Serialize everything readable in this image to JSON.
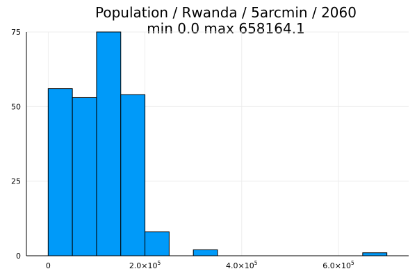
{
  "chart_data": {
    "type": "bar",
    "title_line1": "Population / Rwanda / 5arcmin / 2060",
    "title_line2": "min 0.0  max 658164.1",
    "xlabel": "",
    "ylabel": "",
    "bin_width": 50000,
    "bins": [
      {
        "x0": 0,
        "x1": 50000,
        "count": 56
      },
      {
        "x0": 50000,
        "x1": 100000,
        "count": 53
      },
      {
        "x0": 100000,
        "x1": 150000,
        "count": 75
      },
      {
        "x0": 150000,
        "x1": 200000,
        "count": 54
      },
      {
        "x0": 200000,
        "x1": 250000,
        "count": 8
      },
      {
        "x0": 250000,
        "x1": 300000,
        "count": 0
      },
      {
        "x0": 300000,
        "x1": 350000,
        "count": 2
      },
      {
        "x0": 350000,
        "x1": 400000,
        "count": 0
      },
      {
        "x0": 400000,
        "x1": 450000,
        "count": 0
      },
      {
        "x0": 450000,
        "x1": 500000,
        "count": 0
      },
      {
        "x0": 500000,
        "x1": 550000,
        "count": 0
      },
      {
        "x0": 550000,
        "x1": 600000,
        "count": 0
      },
      {
        "x0": 600000,
        "x1": 650000,
        "count": 0
      },
      {
        "x0": 650000,
        "x1": 700000,
        "count": 1
      }
    ],
    "xlim": [
      -45000,
      745000
    ],
    "ylim": [
      0,
      75
    ],
    "xticks": [
      {
        "value": 0,
        "mantissa": "0",
        "exponent": ""
      },
      {
        "value": 200000,
        "mantissa": "2.0×10",
        "exponent": "5"
      },
      {
        "value": 400000,
        "mantissa": "4.0×10",
        "exponent": "5"
      },
      {
        "value": 600000,
        "mantissa": "6.0×10",
        "exponent": "5"
      }
    ],
    "yticks": [
      0,
      25,
      50,
      75
    ],
    "grid": true,
    "legend": false,
    "colors": {
      "bar_fill": "#009af9",
      "bar_stroke": "#000000",
      "grid": "#e9e9e9"
    }
  }
}
